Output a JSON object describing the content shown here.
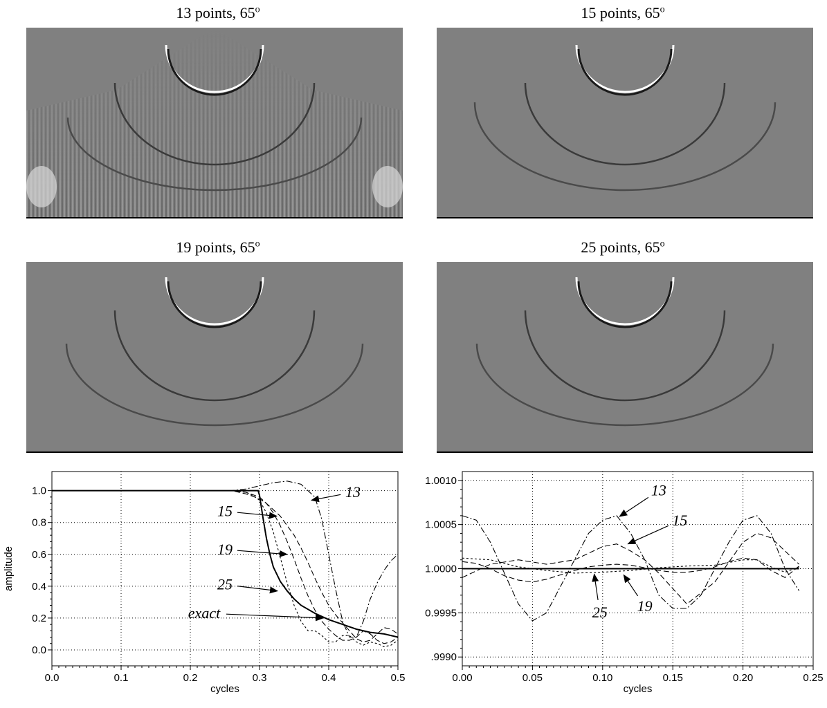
{
  "panels": [
    {
      "title_prefix": "13 points, 65",
      "title_sup": "o"
    },
    {
      "title_prefix": "15 points, 65",
      "title_sup": "o"
    },
    {
      "title_prefix": "19 points, 65",
      "title_sup": "o"
    },
    {
      "title_prefix": "25 points, 65",
      "title_sup": "o"
    }
  ],
  "colors": {
    "panel_gray": "#808080",
    "ink": "#000000"
  },
  "chart_data": [
    {
      "type": "line",
      "title": "",
      "xlabel": "cycles",
      "ylabel": "amplitude",
      "xlim": [
        0.0,
        0.5
      ],
      "ylim": [
        -0.1,
        1.12
      ],
      "x_ticks": [
        "0.0",
        "0.1",
        "0.2",
        "0.3",
        "0.4",
        "0.5"
      ],
      "y_ticks": [
        "0.0",
        "0.2",
        "0.4",
        "0.6",
        "0.8",
        "1.0"
      ],
      "grid": true,
      "series": [
        {
          "name": "exact",
          "style": "solid",
          "x": [
            0.0,
            0.26,
            0.298,
            0.3,
            0.305,
            0.31,
            0.315,
            0.32,
            0.33,
            0.34,
            0.35,
            0.36,
            0.38,
            0.4,
            0.42,
            0.44,
            0.46,
            0.48,
            0.5
          ],
          "y": [
            1.0,
            1.0,
            1.0,
            0.97,
            0.83,
            0.7,
            0.6,
            0.52,
            0.43,
            0.37,
            0.32,
            0.28,
            0.23,
            0.19,
            0.16,
            0.13,
            0.11,
            0.1,
            0.08
          ]
        },
        {
          "name": "13",
          "style": "dash-dot",
          "x": [
            0.0,
            0.26,
            0.28,
            0.3,
            0.32,
            0.34,
            0.36,
            0.38,
            0.39,
            0.4,
            0.41,
            0.42,
            0.43,
            0.44,
            0.45,
            0.46,
            0.47,
            0.48,
            0.49,
            0.5
          ],
          "y": [
            1.0,
            1.0,
            1.01,
            1.03,
            1.05,
            1.06,
            1.04,
            0.96,
            0.82,
            0.6,
            0.38,
            0.18,
            0.08,
            0.08,
            0.18,
            0.32,
            0.42,
            0.5,
            0.56,
            0.6
          ]
        },
        {
          "name": "15",
          "style": "dashed",
          "x": [
            0.0,
            0.26,
            0.28,
            0.3,
            0.31,
            0.32,
            0.33,
            0.34,
            0.35,
            0.36,
            0.37,
            0.38,
            0.39,
            0.4,
            0.41,
            0.42,
            0.43,
            0.44,
            0.45,
            0.46,
            0.47,
            0.48,
            0.49,
            0.5
          ],
          "y": [
            1.0,
            1.0,
            0.98,
            0.95,
            0.92,
            0.88,
            0.84,
            0.78,
            0.72,
            0.64,
            0.55,
            0.45,
            0.36,
            0.28,
            0.22,
            0.17,
            0.12,
            0.07,
            0.05,
            0.06,
            0.1,
            0.14,
            0.13,
            0.1
          ]
        },
        {
          "name": "19",
          "style": "dashed",
          "x": [
            0.0,
            0.26,
            0.28,
            0.3,
            0.31,
            0.32,
            0.33,
            0.34,
            0.35,
            0.36,
            0.37,
            0.38,
            0.39,
            0.4,
            0.41,
            0.42,
            0.43,
            0.44,
            0.45,
            0.46,
            0.47,
            0.48,
            0.49,
            0.5
          ],
          "y": [
            1.0,
            1.0,
            0.99,
            0.96,
            0.92,
            0.86,
            0.78,
            0.68,
            0.57,
            0.45,
            0.34,
            0.25,
            0.18,
            0.13,
            0.09,
            0.06,
            0.06,
            0.08,
            0.12,
            0.1,
            0.06,
            0.04,
            0.05,
            0.08
          ]
        },
        {
          "name": "25",
          "style": "dotted",
          "x": [
            0.0,
            0.26,
            0.28,
            0.29,
            0.3,
            0.31,
            0.32,
            0.33,
            0.34,
            0.35,
            0.36,
            0.37,
            0.38,
            0.39,
            0.4,
            0.41,
            0.42,
            0.43,
            0.44,
            0.45,
            0.46,
            0.47,
            0.48,
            0.49,
            0.5
          ],
          "y": [
            1.0,
            1.0,
            0.99,
            0.97,
            0.94,
            0.86,
            0.74,
            0.58,
            0.42,
            0.28,
            0.18,
            0.12,
            0.12,
            0.09,
            0.05,
            0.05,
            0.09,
            0.09,
            0.05,
            0.03,
            0.05,
            0.04,
            0.02,
            0.03,
            0.06
          ]
        }
      ],
      "annotations": [
        {
          "text": "13",
          "x": 0.435,
          "y": 0.96,
          "arrow_to": [
            0.375,
            0.94
          ]
        },
        {
          "text": "15",
          "x": 0.25,
          "y": 0.84,
          "arrow_to": [
            0.325,
            0.84
          ]
        },
        {
          "text": "19",
          "x": 0.25,
          "y": 0.6,
          "arrow_to": [
            0.34,
            0.6
          ]
        },
        {
          "text": "25",
          "x": 0.25,
          "y": 0.38,
          "arrow_to": [
            0.326,
            0.37
          ]
        },
        {
          "text": "exact",
          "x": 0.22,
          "y": 0.2,
          "arrow_to": [
            0.392,
            0.2
          ]
        }
      ]
    },
    {
      "type": "line",
      "title": "",
      "xlabel": "cycles",
      "ylabel": "",
      "xlim": [
        0.0,
        0.25
      ],
      "ylim": [
        0.9989,
        1.0011
      ],
      "x_ticks": [
        "0.00",
        "0.05",
        "0.10",
        "0.15",
        "0.20",
        "0.25"
      ],
      "y_ticks": [
        ".9990",
        "0.9995",
        "1.0000",
        "1.0005",
        "1.0010"
      ],
      "grid": true,
      "series": [
        {
          "name": "exact",
          "style": "solid",
          "x": [
            0.0,
            0.24
          ],
          "y": [
            1.0,
            1.0
          ]
        },
        {
          "name": "13",
          "style": "dash-dot",
          "x": [
            0.0,
            0.01,
            0.02,
            0.03,
            0.04,
            0.05,
            0.06,
            0.07,
            0.08,
            0.09,
            0.1,
            0.11,
            0.12,
            0.13,
            0.14,
            0.15,
            0.16,
            0.17,
            0.18,
            0.19,
            0.2,
            0.21,
            0.22,
            0.23,
            0.24
          ],
          "y": [
            1.0006,
            1.00055,
            1.0003,
            0.99995,
            0.9996,
            0.99941,
            0.9995,
            0.9998,
            1.0001,
            1.0004,
            1.00055,
            1.0006,
            1.0004,
            1.0001,
            0.9997,
            0.99955,
            0.99955,
            0.9997,
            1.0,
            1.0003,
            1.00055,
            1.0006,
            1.0004,
            1.0,
            0.99975
          ]
        },
        {
          "name": "15",
          "style": "dashed",
          "x": [
            0.0,
            0.02,
            0.04,
            0.06,
            0.08,
            0.1,
            0.11,
            0.12,
            0.13,
            0.14,
            0.16,
            0.18,
            0.2,
            0.21,
            0.22,
            0.23,
            0.24
          ],
          "y": [
            0.9999,
            1.00005,
            1.0001,
            1.00005,
            1.0001,
            1.00025,
            1.00028,
            1.0002,
            1.0001,
            0.99995,
            0.9996,
            0.99985,
            1.0003,
            1.0004,
            1.00035,
            1.0002,
            1.00005
          ]
        },
        {
          "name": "19",
          "style": "dashed",
          "x": [
            0.0,
            0.01,
            0.02,
            0.03,
            0.04,
            0.05,
            0.06,
            0.07,
            0.08,
            0.09,
            0.1,
            0.11,
            0.12,
            0.13,
            0.14,
            0.15,
            0.16,
            0.17,
            0.18,
            0.19,
            0.2,
            0.21,
            0.22,
            0.23,
            0.24
          ],
          "y": [
            1.00008,
            1.00006,
            1.0,
            0.99992,
            0.99987,
            0.99985,
            0.99988,
            0.99993,
            0.99998,
            1.00002,
            1.00004,
            1.00005,
            1.00004,
            1.00001,
            0.99998,
            0.99996,
            0.99996,
            0.99998,
            1.00002,
            1.00008,
            1.00012,
            1.0001,
            0.99998,
            0.9999,
            1.00003
          ]
        },
        {
          "name": "25",
          "style": "dotted",
          "x": [
            0.0,
            0.02,
            0.04,
            0.06,
            0.08,
            0.1,
            0.12,
            0.14,
            0.16,
            0.18,
            0.2,
            0.21,
            0.22,
            0.23,
            0.24
          ],
          "y": [
            1.00012,
            1.0001,
            1.00002,
            0.99998,
            0.99995,
            0.99996,
            0.99998,
            1.00001,
            1.00003,
            1.00004,
            1.0001,
            1.0001,
            1.00002,
            0.99996,
            1.00002
          ]
        }
      ],
      "annotations": [
        {
          "text": "13",
          "x": 0.14,
          "y": 1.00083,
          "arrow_to": [
            0.112,
            1.00059
          ]
        },
        {
          "text": "15",
          "x": 0.155,
          "y": 1.00049,
          "arrow_to": [
            0.118,
            1.00028
          ]
        },
        {
          "text": "25",
          "x": 0.098,
          "y": 0.99945,
          "arrow_to": [
            0.094,
            0.99994
          ]
        },
        {
          "text": "19",
          "x": 0.13,
          "y": 0.99952,
          "arrow_to": [
            0.115,
            0.99993
          ]
        }
      ]
    }
  ]
}
